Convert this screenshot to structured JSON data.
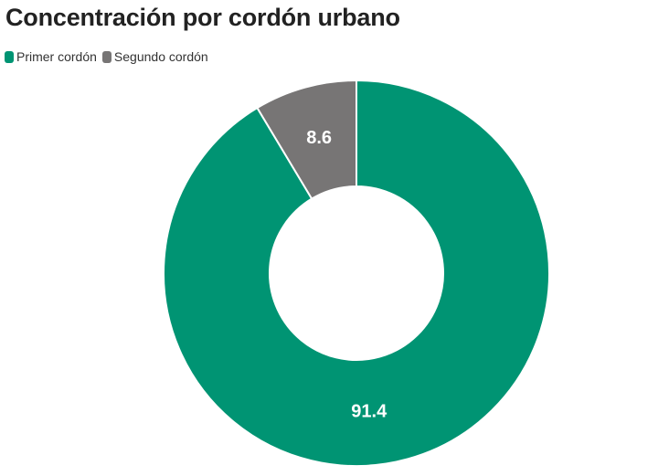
{
  "chart_data": {
    "type": "pie",
    "title": "Concentración por cordón urbano",
    "donut": true,
    "legend_position": "top-left",
    "categories": [
      "Primer cordón",
      "Segundo cordón"
    ],
    "values": [
      91.4,
      8.6
    ],
    "value_labels": [
      "91.4",
      "8.6"
    ],
    "colors": [
      "#009473",
      "#777575"
    ]
  }
}
